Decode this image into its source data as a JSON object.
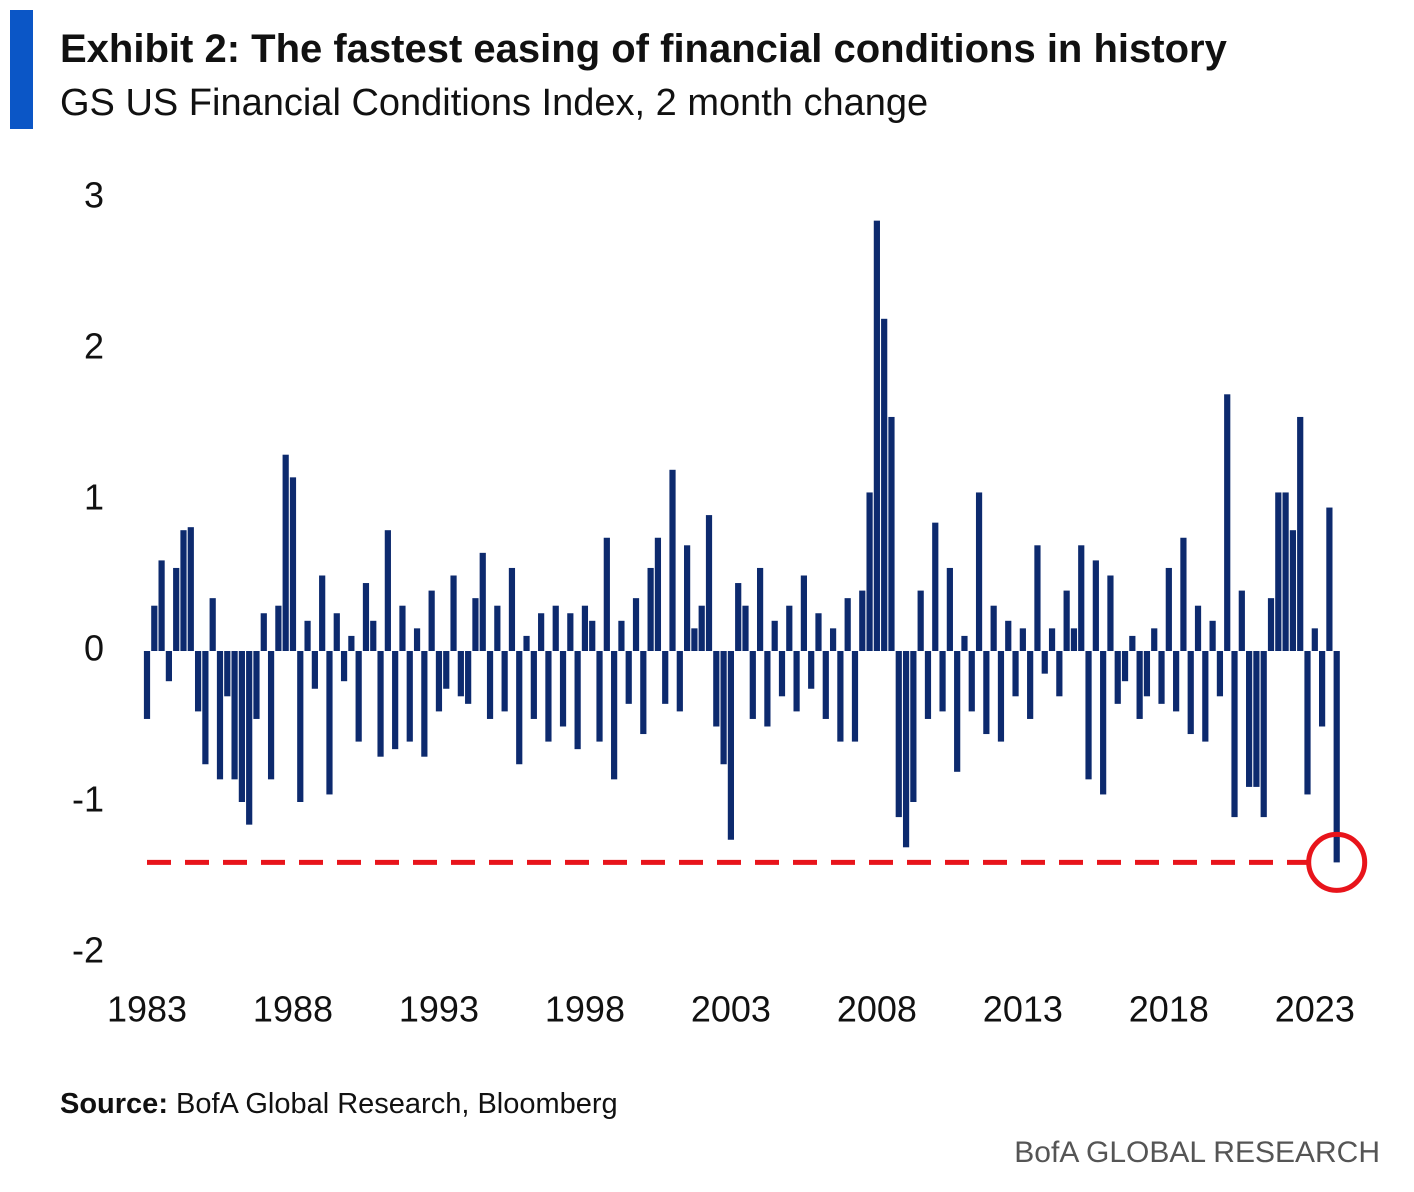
{
  "chart_data": {
    "type": "bar",
    "title": "Exhibit 2: The fastest easing of financial conditions in history",
    "subtitle": "GS US Financial Conditions Index, 2 month change",
    "source_label": "Source:",
    "source": "BofA Global Research, Bloomberg",
    "brand": "BofA GLOBAL RESEARCH",
    "color": "#0d2a6e",
    "xlim": [
      1983,
      2024
    ],
    "xticks": [
      1983,
      1988,
      1993,
      1998,
      2003,
      2008,
      2013,
      2018,
      2023
    ],
    "ylim": [
      -2,
      3
    ],
    "yticks": [
      -2,
      -1,
      0,
      1,
      2,
      3
    ],
    "reference_line": {
      "value": -1.4,
      "color": "#e8141b"
    },
    "x": [
      1983,
      1983.25,
      1983.5,
      1983.75,
      1984,
      1984.25,
      1984.5,
      1984.75,
      1985,
      1985.25,
      1985.5,
      1985.75,
      1986,
      1986.25,
      1986.5,
      1986.75,
      1987,
      1987.25,
      1987.5,
      1987.75,
      1988,
      1988.25,
      1988.5,
      1988.75,
      1989,
      1989.25,
      1989.5,
      1989.75,
      1990,
      1990.25,
      1990.5,
      1990.75,
      1991,
      1991.25,
      1991.5,
      1991.75,
      1992,
      1992.25,
      1992.5,
      1992.75,
      1993,
      1993.25,
      1993.5,
      1993.75,
      1994,
      1994.25,
      1994.5,
      1994.75,
      1995,
      1995.25,
      1995.5,
      1995.75,
      1996,
      1996.25,
      1996.5,
      1996.75,
      1997,
      1997.25,
      1997.5,
      1997.75,
      1998,
      1998.25,
      1998.5,
      1998.75,
      1999,
      1999.25,
      1999.5,
      1999.75,
      2000,
      2000.25,
      2000.5,
      2000.75,
      2001,
      2001.25,
      2001.5,
      2001.75,
      2002,
      2002.25,
      2002.5,
      2002.75,
      2003,
      2003.25,
      2003.5,
      2003.75,
      2004,
      2004.25,
      2004.5,
      2004.75,
      2005,
      2005.25,
      2005.5,
      2005.75,
      2006,
      2006.25,
      2006.5,
      2006.75,
      2007,
      2007.25,
      2007.5,
      2007.75,
      2008,
      2008.25,
      2008.5,
      2008.75,
      2009,
      2009.25,
      2009.5,
      2009.75,
      2010,
      2010.25,
      2010.5,
      2010.75,
      2011,
      2011.25,
      2011.5,
      2011.75,
      2012,
      2012.25,
      2012.5,
      2012.75,
      2013,
      2013.25,
      2013.5,
      2013.75,
      2014,
      2014.25,
      2014.5,
      2014.75,
      2015,
      2015.25,
      2015.5,
      2015.75,
      2016,
      2016.25,
      2016.5,
      2016.75,
      2017,
      2017.25,
      2017.5,
      2017.75,
      2018,
      2018.25,
      2018.5,
      2018.75,
      2019,
      2019.25,
      2019.5,
      2019.75,
      2020,
      2020.25,
      2020.5,
      2020.75,
      2021,
      2021.25,
      2021.5,
      2021.75,
      2022,
      2022.25,
      2022.5,
      2022.75,
      2023,
      2023.25,
      2023.5,
      2023.75
    ],
    "values": [
      -0.45,
      0.3,
      0.6,
      -0.2,
      0.55,
      0.8,
      0.82,
      -0.4,
      -0.75,
      0.35,
      -0.85,
      -0.3,
      -0.85,
      -1.0,
      -1.15,
      -0.45,
      0.25,
      -0.85,
      0.3,
      1.3,
      1.15,
      -1.0,
      0.2,
      -0.25,
      0.5,
      -0.95,
      0.25,
      -0.2,
      0.1,
      -0.6,
      0.45,
      0.2,
      -0.7,
      0.8,
      -0.65,
      0.3,
      -0.6,
      0.15,
      -0.7,
      0.4,
      -0.4,
      -0.25,
      0.5,
      -0.3,
      -0.35,
      0.35,
      0.65,
      -0.45,
      0.3,
      -0.4,
      0.55,
      -0.75,
      0.1,
      -0.45,
      0.25,
      -0.6,
      0.3,
      -0.5,
      0.25,
      -0.65,
      0.3,
      0.2,
      -0.6,
      0.75,
      -0.85,
      0.2,
      -0.35,
      0.35,
      -0.55,
      0.55,
      0.75,
      -0.35,
      1.2,
      -0.4,
      0.7,
      0.15,
      0.3,
      0.9,
      -0.5,
      -0.75,
      -1.25,
      0.45,
      0.3,
      -0.45,
      0.55,
      -0.5,
      0.2,
      -0.3,
      0.3,
      -0.4,
      0.5,
      -0.25,
      0.25,
      -0.45,
      0.15,
      -0.6,
      0.35,
      -0.6,
      0.4,
      1.05,
      2.85,
      2.2,
      1.55,
      -1.1,
      -1.3,
      -1.0,
      0.4,
      -0.45,
      0.85,
      -0.4,
      0.55,
      -0.8,
      0.1,
      -0.4,
      1.05,
      -0.55,
      0.3,
      -0.6,
      0.2,
      -0.3,
      0.15,
      -0.45,
      0.7,
      -0.15,
      0.15,
      -0.3,
      0.4,
      0.15,
      0.7,
      -0.85,
      0.6,
      -0.95,
      0.5,
      -0.35,
      -0.2,
      0.1,
      -0.45,
      -0.3,
      0.15,
      -0.35,
      0.55,
      -0.4,
      0.75,
      -0.55,
      0.3,
      -0.6,
      0.2,
      -0.3,
      1.7,
      -1.1,
      0.4,
      -0.9,
      -0.9,
      -1.1,
      0.35,
      1.05,
      1.05,
      0.8,
      1.55,
      -0.95,
      0.15,
      -0.5,
      0.95,
      -1.4
    ]
  }
}
